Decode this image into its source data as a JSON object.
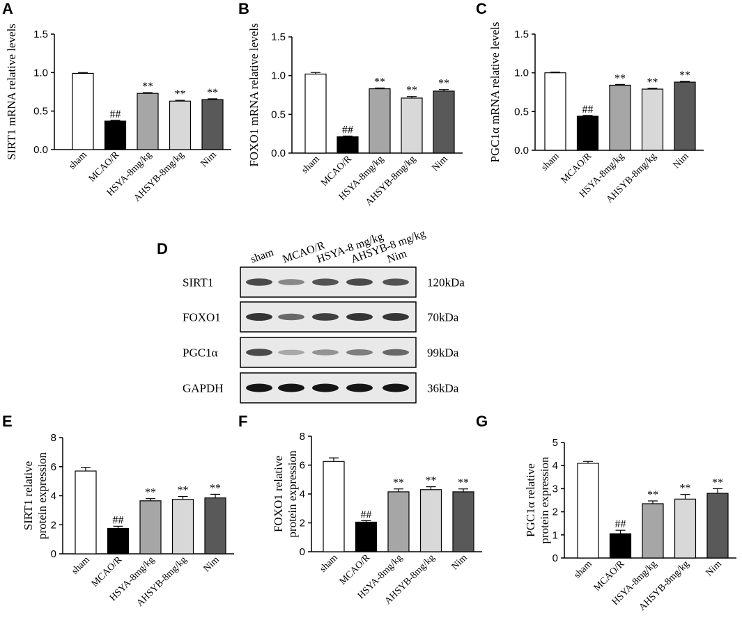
{
  "colors": {
    "bar_fills": [
      "#ffffff",
      "#000000",
      "#a6a6a6",
      "#d8d8d8",
      "#595959"
    ],
    "stroke": "#000000"
  },
  "chart_data": [
    {
      "panel": "A",
      "type": "bar",
      "ylabel": "SIRT1 mRNA relative levels",
      "categories": [
        "sham",
        "MCAO/R",
        "HSYA-8mg/kg",
        "AHSYB-8mg/kg",
        "Nim"
      ],
      "values": [
        0.99,
        0.37,
        0.73,
        0.63,
        0.65
      ],
      "errors": [
        0.01,
        0.01,
        0.01,
        0.01,
        0.01
      ],
      "annotations": [
        "",
        "##",
        "**",
        "**",
        "**"
      ],
      "ylim": [
        0,
        1.5
      ],
      "yticks": [
        "0.0",
        "0.5",
        "1.0",
        "1.5"
      ]
    },
    {
      "panel": "B",
      "type": "bar",
      "ylabel": "FOXO1 mRNA relative levels",
      "categories": [
        "sham",
        "MCAO/R",
        "HSYA-8mg/kg",
        "AHSYB-8mg/kg",
        "Nim"
      ],
      "values": [
        1.02,
        0.21,
        0.83,
        0.71,
        0.8
      ],
      "errors": [
        0.02,
        0.01,
        0.01,
        0.02,
        0.02
      ],
      "annotations": [
        "",
        "##",
        "**",
        "**",
        "**"
      ],
      "ylim": [
        0,
        1.5
      ],
      "yticks": [
        "0.0",
        "0.5",
        "1.0",
        "1.5"
      ]
    },
    {
      "panel": "C",
      "type": "bar",
      "ylabel": "PGC1α mRNA relative levels",
      "categories": [
        "sham",
        "MCAO/R",
        "HSYA-8mg/kg",
        "AHSYB-8mg/kg",
        "Nim"
      ],
      "values": [
        1.0,
        0.44,
        0.84,
        0.79,
        0.88
      ],
      "errors": [
        0.01,
        0.01,
        0.01,
        0.01,
        0.01
      ],
      "annotations": [
        "",
        "##",
        "**",
        "**",
        "**"
      ],
      "ylim": [
        0,
        1.5
      ],
      "yticks": [
        "0.0",
        "0.5",
        "1.0",
        "1.5"
      ]
    },
    {
      "panel": "E",
      "type": "bar",
      "ylabel": [
        "SIRT1 relative",
        "protein expression"
      ],
      "categories": [
        "sham",
        "MCAO/R",
        "HSYA-8mg/kg",
        "AHSYB-8mg/kg",
        "Nim"
      ],
      "values": [
        5.7,
        1.75,
        3.65,
        3.75,
        3.85
      ],
      "errors": [
        0.25,
        0.15,
        0.15,
        0.2,
        0.25
      ],
      "annotations": [
        "",
        "##",
        "**",
        "**",
        "**"
      ],
      "ylim": [
        0,
        8
      ],
      "yticks": [
        "0",
        "2",
        "4",
        "6",
        "8"
      ]
    },
    {
      "panel": "F",
      "type": "bar",
      "ylabel": [
        "FOXO1 relative",
        "protein expression"
      ],
      "categories": [
        "sham",
        "MCAO/R",
        "HSYA-8mg/kg",
        "AHSYB-8mg/kg",
        "Nim"
      ],
      "values": [
        6.25,
        2.05,
        4.15,
        4.3,
        4.15
      ],
      "errors": [
        0.25,
        0.1,
        0.2,
        0.2,
        0.2
      ],
      "annotations": [
        "",
        "##",
        "**",
        "**",
        "**"
      ],
      "ylim": [
        0,
        8
      ],
      "yticks": [
        "0",
        "2",
        "4",
        "6",
        "8"
      ]
    },
    {
      "panel": "G",
      "type": "bar",
      "ylabel": [
        "PGC1α relative",
        "protein expression"
      ],
      "categories": [
        "sham",
        "MCAO/R",
        "HSYA-8mg/kg",
        "AHSYB-8mg/kg",
        "Nim"
      ],
      "values": [
        4.1,
        1.05,
        2.35,
        2.55,
        2.8
      ],
      "errors": [
        0.08,
        0.15,
        0.12,
        0.2,
        0.2
      ],
      "annotations": [
        "",
        "##",
        "**",
        "**",
        "**"
      ],
      "ylim": [
        0,
        5
      ],
      "yticks": [
        "0",
        "1",
        "2",
        "3",
        "4",
        "5"
      ]
    }
  ],
  "western_blot": {
    "panel": "D",
    "lane_labels": [
      "sham",
      "MCAO/R",
      "HSYA-8 mg/kg",
      "AHSYB-8 mg/kg",
      "Nim"
    ],
    "rows": [
      {
        "protein": "SIRT1",
        "size": "120kDa",
        "band_intensity": [
          0.75,
          0.45,
          0.7,
          0.75,
          0.7
        ]
      },
      {
        "protein": "FOXO1",
        "size": "70kDa",
        "band_intensity": [
          0.85,
          0.6,
          0.8,
          0.85,
          0.85
        ]
      },
      {
        "protein": "PGC1α",
        "size": "99kDa",
        "band_intensity": [
          0.75,
          0.3,
          0.4,
          0.5,
          0.6
        ]
      },
      {
        "protein": "GAPDH",
        "size": "36kDa",
        "band_intensity": [
          1.0,
          1.0,
          1.0,
          1.0,
          1.0
        ]
      }
    ]
  }
}
